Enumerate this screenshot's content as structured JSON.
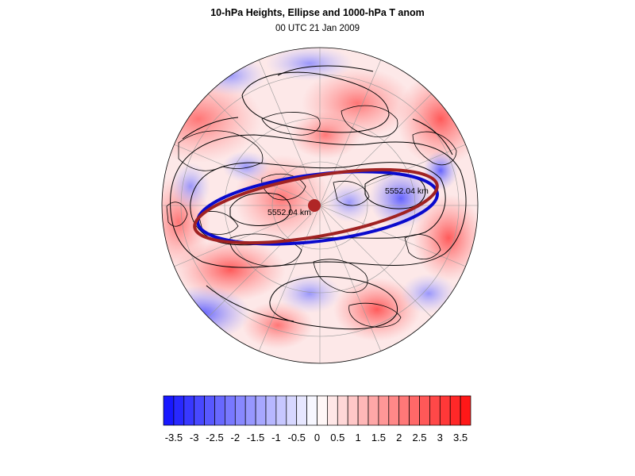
{
  "title": "10-hPa Heights, Ellipse and 1000-hPa T anom",
  "subtitle": "00 UTC 21 Jan 2009",
  "contour_labels": [
    "5552.04 km",
    "5552.04 km"
  ],
  "colorbar": {
    "min": -3.75,
    "max": 3.75,
    "step": 0.25,
    "tick_labels": [
      "-3.5",
      "-3",
      "-2.5",
      "-2",
      "-1.5",
      "-1",
      "-0.5",
      "0",
      "0.5",
      "1",
      "1.5",
      "2",
      "2.5",
      "3",
      "3.5"
    ],
    "low_color": "#1010ff",
    "high_color": "#ff1010",
    "mid_color": "#ffffff"
  },
  "overlay_colors": {
    "blue_ellipse": "#0a0acd",
    "red_ellipse": "#a02222",
    "center_dot": "#b02626",
    "height_contours": "#000000"
  }
}
